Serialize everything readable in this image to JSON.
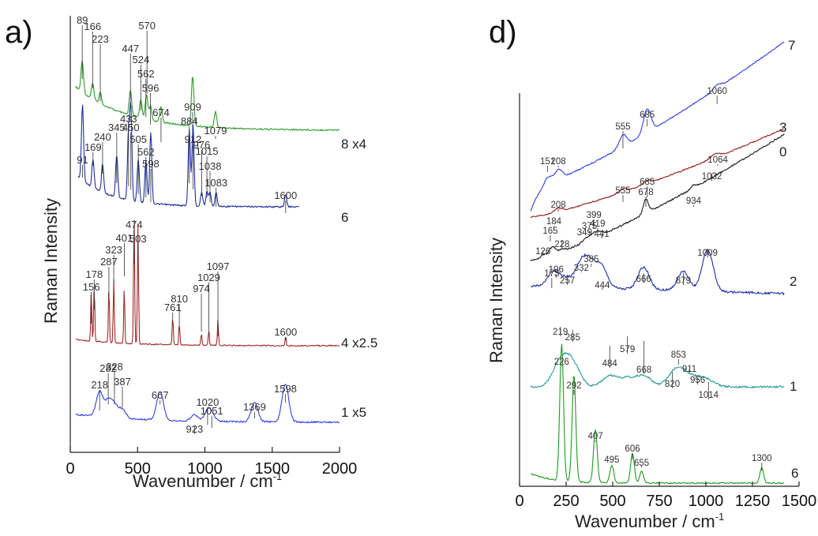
{
  "panels": [
    {
      "id": "a",
      "letter": "a)",
      "xlabel": "Wavenumber / cm",
      "xlabel_sup": "-1",
      "ylabel": "Raman  Intensity",
      "x_ticks": [
        "0",
        "500",
        "1000",
        "1500",
        "2000"
      ]
    },
    {
      "id": "d",
      "letter": "d)",
      "xlabel": "Wavenumber  /  cm",
      "xlabel_sup": "-1",
      "ylabel": "Raman Intensity",
      "x_ticks": [
        "0",
        "250",
        "500",
        "750",
        "1000",
        "1250",
        "1500"
      ]
    }
  ],
  "chart_data": [
    {
      "type": "line",
      "panel": "a",
      "xlim": [
        0,
        2000
      ],
      "x_ticks": [
        0,
        500,
        1000,
        1500,
        2000
      ],
      "y_axis": "arbitrary units, spectra vertically offset",
      "series": [
        {
          "name": "8 x4",
          "color": "#2e9a2e",
          "peaks": [
            89,
            166,
            223,
            570,
            447,
            524,
            562,
            596,
            674,
            909,
            1079
          ],
          "peak_labels": [
            "89",
            "166",
            "223",
            "570",
            "447",
            "524",
            "562",
            "596",
            "674",
            "909",
            "1079"
          ]
        },
        {
          "name": "6",
          "color": "#1f2f9e",
          "peaks": [
            91,
            169,
            240,
            345,
            433,
            450,
            505,
            562,
            598,
            884,
            912,
            976,
            1015,
            1038,
            1083,
            1600
          ],
          "peak_labels": [
            "91",
            "169",
            "240",
            "345",
            "433",
            "450",
            "505",
            "562",
            "598",
            "884",
            "912",
            "976",
            "1015",
            "1038",
            "1083",
            "1600"
          ]
        },
        {
          "name": "4 x2.5",
          "color": "#9e2a2a",
          "peaks": [
            156,
            178,
            287,
            323,
            401,
            474,
            503,
            761,
            810,
            974,
            1029,
            1097,
            1600
          ],
          "peak_labels": [
            "156",
            "178",
            "287",
            "323",
            "401",
            "474",
            "503",
            "761",
            "810",
            "974",
            "1029",
            "1097",
            "1600"
          ]
        },
        {
          "name": "1 x5",
          "color": "#2f3fe0",
          "peaks": [
            218,
            282,
            328,
            387,
            667,
            923,
            1020,
            1051,
            1369,
            1598
          ],
          "peak_labels": [
            "218",
            "282",
            "328",
            "387",
            "667",
            "923",
            "1020",
            "1051",
            "1369",
            "1598"
          ]
        }
      ]
    },
    {
      "type": "line",
      "panel": "d",
      "xlim": [
        0,
        1500
      ],
      "x_ticks": [
        0,
        250,
        500,
        750,
        1000,
        1250,
        1500
      ],
      "y_axis": "arbitrary units, spectra vertically offset",
      "series": [
        {
          "name": "7",
          "color": "#2f3fe0",
          "peaks": [
            151,
            208,
            555,
            685,
            1060
          ],
          "peak_labels": [
            "151",
            "208",
            "555",
            "685",
            "1060"
          ]
        },
        {
          "name": "3",
          "color": "#8e1f1f",
          "peaks": [
            208,
            555,
            685,
            1032,
            1064
          ],
          "peak_labels": [
            "208",
            "555",
            "685",
            "1032",
            "1064"
          ]
        },
        {
          "name": "0",
          "color": "#1a1a1a",
          "peaks": [
            126,
            165,
            184,
            228,
            349,
            375,
            399,
            419,
            441,
            678,
            934
          ],
          "peak_labels": [
            "126",
            "165",
            "184",
            "228",
            "349",
            "375",
            "399",
            "419",
            "441",
            "678",
            "934"
          ]
        },
        {
          "name": "2",
          "color": "#1f2fa8",
          "peaks": [
            173,
            196,
            257,
            332,
            385,
            444,
            666,
            879,
            1009
          ],
          "peak_labels": [
            "173",
            "196",
            "257",
            "332",
            "385",
            "444",
            "666",
            "879",
            "1009"
          ]
        },
        {
          "name": "1",
          "color": "#2a9a9a",
          "peaks": [
            219,
            285,
            484,
            579,
            668,
            820,
            853,
            911,
            956,
            1014
          ],
          "peak_labels": [
            "219",
            "285",
            "484",
            "579",
            "668",
            "820",
            "853",
            "911",
            "956",
            "1014"
          ]
        },
        {
          "name": "6",
          "color": "#1e9a1e",
          "peaks": [
            226,
            292,
            407,
            495,
            606,
            655,
            1300
          ],
          "peak_labels": [
            "226",
            "292",
            "407",
            "495",
            "606",
            "655",
            "1300"
          ]
        }
      ]
    }
  ]
}
